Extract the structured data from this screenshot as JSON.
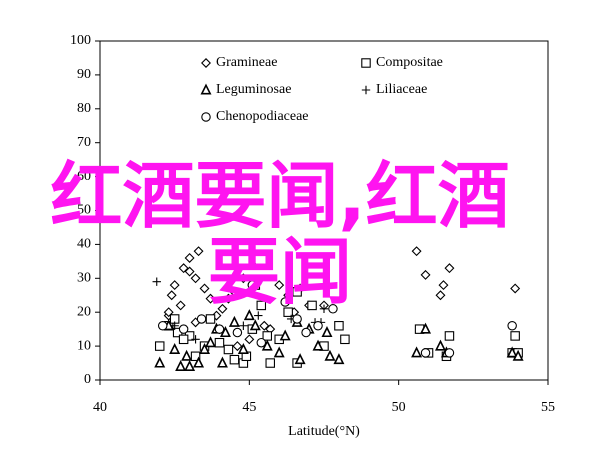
{
  "chart_data": {
    "type": "scatter",
    "xlabel": "Latitude(°N)",
    "annotation": "红酒要闻,红酒要闻",
    "xlim": [
      40,
      55
    ],
    "xticks": [
      40,
      45,
      50,
      55
    ],
    "ylim": [
      0,
      100
    ],
    "yticks": [
      0,
      10,
      20,
      30,
      40,
      50,
      60,
      70,
      80,
      90,
      100
    ],
    "legend": "upper center",
    "series": [
      {
        "name": "Gramineae",
        "marker": "diamond",
        "color": "#000000",
        "x": [
          42.3,
          42.4,
          42.5,
          42.8,
          43,
          43.3,
          43.2,
          43,
          42.7,
          43.5,
          43.7,
          43.9,
          44.1,
          44.3,
          44.5,
          44.8,
          45.1,
          45.1,
          46,
          46.3,
          46.7,
          47,
          47.5,
          42.3,
          43.2,
          44,
          44.6,
          45,
          45.7,
          50.6,
          50.9,
          51.7,
          51.5,
          51.4,
          53.9,
          45.5,
          46.5
        ],
        "values": [
          19,
          25,
          28,
          33,
          36,
          38,
          30,
          32,
          22,
          27,
          24,
          19,
          21,
          24,
          26,
          30,
          34,
          28,
          28,
          25,
          27,
          22,
          22,
          20,
          17,
          15,
          10,
          12,
          15,
          38,
          31,
          33,
          28,
          25,
          27,
          16,
          20
        ]
      },
      {
        "name": "Compositae",
        "marker": "square",
        "color": "#000000",
        "x": [
          42,
          42.3,
          42.5,
          42.6,
          43,
          43.5,
          43.7,
          44,
          44.3,
          44.5,
          45.1,
          45.2,
          45.4,
          45.6,
          46,
          46.3,
          46.6,
          47.1,
          47.5,
          48,
          48.2,
          42.8,
          43.2,
          44.8,
          45.7,
          46.6,
          50.7,
          51,
          51.7,
          51.6,
          53.9,
          53.8,
          54,
          44.9
        ],
        "values": [
          10,
          16,
          18,
          14,
          13,
          10,
          18,
          11,
          9,
          6,
          15,
          28,
          22,
          13,
          12,
          20,
          26,
          22,
          10,
          16,
          12,
          12,
          7,
          5,
          5,
          5,
          15,
          8,
          13,
          7,
          13,
          8,
          8,
          7
        ]
      },
      {
        "name": "Leguminosae",
        "marker": "triangle",
        "color": "#000000",
        "x": [
          42,
          42.3,
          42.5,
          42.7,
          43,
          43.3,
          43.7,
          43.9,
          44.2,
          44.5,
          44.8,
          45,
          45.2,
          45.6,
          46,
          46.2,
          46.7,
          47,
          47.3,
          47.7,
          48,
          50.6,
          50.9,
          51.4,
          51.6,
          53.8,
          54,
          42.9,
          44.1,
          46.6,
          47.6,
          43.5
        ],
        "values": [
          5,
          16,
          9,
          4,
          4,
          5,
          11,
          15,
          14,
          17,
          9,
          19,
          16,
          10,
          8,
          13,
          6,
          15,
          10,
          7,
          6,
          8,
          15,
          10,
          8,
          8,
          7,
          7,
          5,
          17,
          14,
          9
        ]
      },
      {
        "name": "Liliaceae",
        "marker": "plus",
        "color": "#000000",
        "x": [
          41.9,
          42.5,
          43.2,
          44.8,
          45.3,
          46.4,
          47.2,
          47.4,
          47.5
        ],
        "values": [
          29,
          16,
          12,
          16,
          19,
          18,
          17,
          17,
          21
        ]
      },
      {
        "name": "Chenopodiaceae",
        "marker": "circle",
        "color": "#000000",
        "x": [
          42.1,
          42.8,
          43.4,
          44,
          44.6,
          45.4,
          46.6,
          46.9,
          47.3,
          47.8,
          51.7,
          50.9,
          53.8,
          45.1,
          46.2
        ],
        "values": [
          16,
          15,
          18,
          15,
          14,
          11,
          18,
          14,
          16,
          21,
          8,
          8,
          16,
          28,
          23
        ]
      }
    ]
  }
}
